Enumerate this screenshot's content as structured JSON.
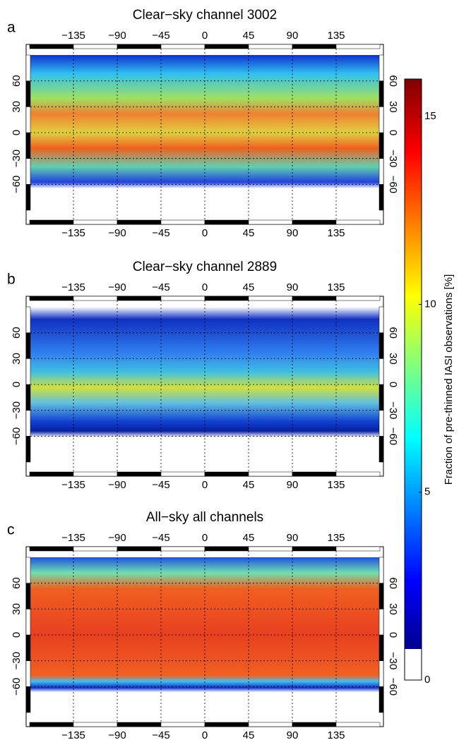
{
  "panels": [
    {
      "letter": "a",
      "title": "Clear−sky channel 3002"
    },
    {
      "letter": "b",
      "title": "Clear−sky channel 2889"
    },
    {
      "letter": "c",
      "title": "All−sky all channels"
    }
  ],
  "xlim": [
    -180,
    180
  ],
  "xticks": [
    {
      "value": -135,
      "label": "−135"
    },
    {
      "value": -90,
      "label": "−90"
    },
    {
      "value": -45,
      "label": "−45"
    },
    0,
    45,
    90,
    135
  ],
  "ylim": [
    -90,
    90
  ],
  "yticks": [
    {
      "value": -60,
      "label": "−60"
    },
    {
      "value": -30,
      "label": "−30"
    },
    0,
    30,
    60
  ],
  "colorbar": {
    "label": "Fraction of pre-thinned IASI observations [%]",
    "lim": [
      0,
      16
    ],
    "ticks": [
      0,
      5,
      10,
      15
    ]
  }
}
